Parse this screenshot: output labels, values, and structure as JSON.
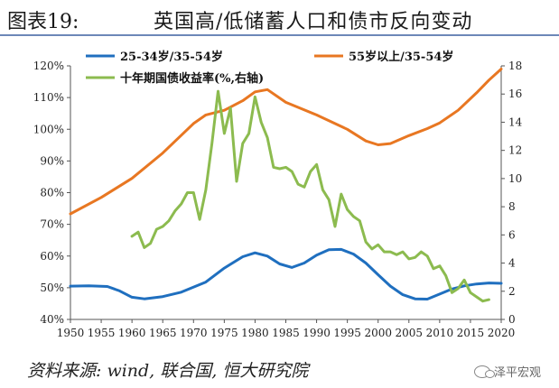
{
  "header": {
    "number": "图表19:",
    "title": "英国高/低储蓄人口和债市反向变动"
  },
  "source": "资料来源: wind, 联合国, 恒大研究院",
  "watermark": "泽平宏观",
  "chart_data": {
    "type": "line",
    "x_ticks": [
      1950,
      1955,
      1960,
      1965,
      1970,
      1975,
      1980,
      1985,
      1990,
      1995,
      2000,
      2005,
      2010,
      2015,
      2020
    ],
    "y_left": {
      "ticks": [
        "40%",
        "50%",
        "60%",
        "70%",
        "80%",
        "90%",
        "100%",
        "110%",
        "120%"
      ],
      "lim": [
        40,
        120
      ]
    },
    "y_right": {
      "ticks": [
        "0",
        "2",
        "4",
        "6",
        "8",
        "10",
        "12",
        "14",
        "16",
        "18"
      ],
      "lim": [
        0,
        18
      ]
    },
    "grid": false,
    "legend_position": "top",
    "series": [
      {
        "name": "25-34岁/35-54岁",
        "axis": "left",
        "color": "#1f6fbf",
        "x": [
          1950,
          1953,
          1956,
          1958,
          1960,
          1962,
          1965,
          1968,
          1972,
          1975,
          1978,
          1980,
          1982,
          1984,
          1986,
          1988,
          1990,
          1992,
          1994,
          1996,
          1998,
          2000,
          2002,
          2004,
          2006,
          2008,
          2010,
          2012,
          2014,
          2016,
          2018,
          2020
        ],
        "y": [
          50.5,
          50.6,
          50.4,
          49.0,
          47.0,
          46.5,
          47.2,
          48.6,
          51.8,
          56.2,
          59.8,
          61.0,
          60.0,
          57.5,
          56.4,
          57.8,
          60.3,
          62.0,
          62.1,
          60.6,
          57.8,
          54.1,
          50.5,
          47.8,
          46.5,
          46.4,
          48.0,
          49.6,
          50.6,
          51.2,
          51.5,
          51.4
        ]
      },
      {
        "name": "55岁以上/35-54岁",
        "axis": "left",
        "color": "#e87722",
        "x": [
          1950,
          1955,
          1960,
          1965,
          1970,
          1972,
          1975,
          1978,
          1980,
          1982,
          1985,
          1990,
          1995,
          1998,
          2000,
          2002,
          2005,
          2008,
          2010,
          2013,
          2016,
          2018,
          2020
        ],
        "y": [
          73.3,
          78.5,
          84.5,
          92.5,
          101.8,
          104.5,
          106.0,
          109.0,
          111.8,
          112.5,
          108.5,
          104.5,
          100.0,
          96.3,
          95.1,
          95.5,
          98.0,
          100.2,
          102.0,
          106.0,
          111.5,
          115.5,
          119.0
        ]
      },
      {
        "name": "十年期国债收益率(%,右轴)",
        "axis": "right",
        "color": "#8cbb4f",
        "x": [
          1960,
          1961,
          1962,
          1963,
          1964,
          1965,
          1966,
          1967,
          1968,
          1969,
          1970,
          1971,
          1972,
          1973,
          1974,
          1975,
          1976,
          1977,
          1978,
          1979,
          1980,
          1981,
          1982,
          1983,
          1984,
          1985,
          1986,
          1987,
          1988,
          1989,
          1990,
          1991,
          1992,
          1993,
          1994,
          1995,
          1996,
          1997,
          1998,
          1999,
          2000,
          2001,
          2002,
          2003,
          2004,
          2005,
          2006,
          2007,
          2008,
          2009,
          2010,
          2011,
          2012,
          2013,
          2014,
          2015,
          2016,
          2017,
          2018
        ],
        "y": [
          5.9,
          6.2,
          5.1,
          5.4,
          6.4,
          6.6,
          7.0,
          7.7,
          8.2,
          9.0,
          9.0,
          7.1,
          9.2,
          12.5,
          16.2,
          13.2,
          15.0,
          9.8,
          12.5,
          13.2,
          15.8,
          14.0,
          12.9,
          10.8,
          10.7,
          10.8,
          10.5,
          9.6,
          9.4,
          10.5,
          11.0,
          9.2,
          8.5,
          6.6,
          8.9,
          7.8,
          7.3,
          7.0,
          5.5,
          5.0,
          5.3,
          4.8,
          4.8,
          4.6,
          4.8,
          4.3,
          4.4,
          4.8,
          4.5,
          3.6,
          3.8,
          3.1,
          1.9,
          2.2,
          2.8,
          1.9,
          1.6,
          1.3,
          1.4
        ]
      }
    ]
  }
}
